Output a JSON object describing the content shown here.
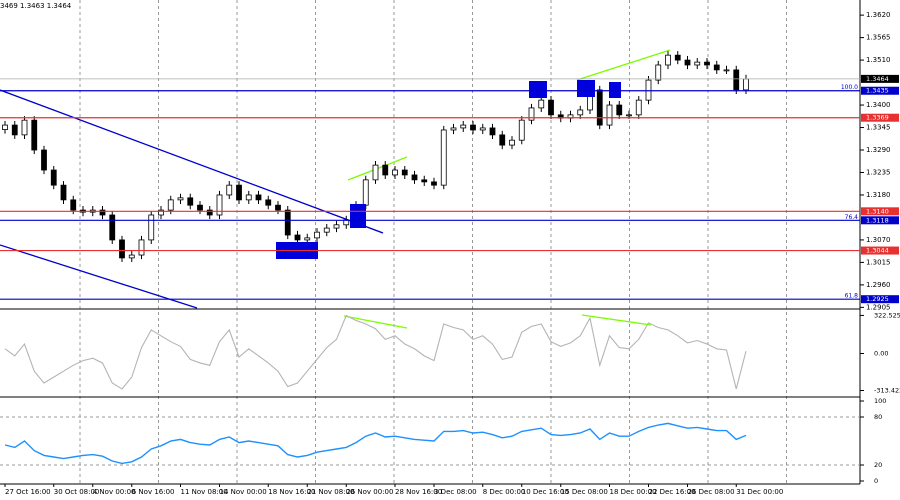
{
  "chart_data": {
    "type": "candlestick",
    "title": "3469 1.3463 1.3464",
    "categories": [
      "27 Oct 16:00",
      null,
      null,
      null,
      null,
      "30 Oct 08:00",
      null,
      null,
      null,
      "4 Nov 00:00",
      null,
      null,
      null,
      "6 Nov 16:00",
      null,
      null,
      null,
      null,
      "11 Nov 08:00",
      null,
      null,
      null,
      "14 Nov 00:00",
      null,
      null,
      null,
      null,
      "18 Nov 16:00",
      null,
      null,
      null,
      "21 Nov 08:00",
      null,
      null,
      null,
      "26 Nov 00:00",
      null,
      null,
      null,
      null,
      "28 Nov 16:00",
      null,
      null,
      null,
      "3 Dec 08:00",
      null,
      null,
      null,
      null,
      "8 Dec 00:00",
      null,
      null,
      null,
      "10 Dec 16:00",
      null,
      null,
      null,
      "15 Dec 08:00",
      null,
      null,
      null,
      null,
      "18 Dec 00:00",
      null,
      null,
      null,
      "22 Dec 16:00",
      null,
      null,
      null,
      "26 Dec 08:00",
      null,
      null,
      null,
      null,
      "31 Dec 00:00",
      null
    ],
    "open": [
      1.334,
      1.3351,
      1.3327,
      1.3363,
      1.329,
      1.3241,
      1.3204,
      1.3168,
      1.3143,
      1.3138,
      1.3143,
      1.3131,
      1.307,
      1.3026,
      1.3033,
      1.307,
      1.3131,
      1.3143,
      1.3168,
      1.3173,
      1.3155,
      1.3143,
      1.3131,
      1.318,
      1.3204,
      1.3168,
      1.318,
      1.3168,
      1.3155,
      1.3143,
      1.3082,
      1.307,
      1.3075,
      1.3089,
      1.3099,
      1.3107,
      1.3119,
      1.3155,
      1.3217,
      1.3253,
      1.3229,
      1.3241,
      1.3229,
      1.3217,
      1.3212,
      1.3204,
      1.3339,
      1.3344,
      1.3351,
      1.3339,
      1.3344,
      1.3327,
      1.3302,
      1.3314,
      1.3363,
      1.3393,
      1.3412,
      1.3376,
      1.3368,
      1.3376,
      1.3388,
      1.3437,
      1.3351,
      1.34,
      1.3376,
      1.3376,
      1.3412,
      1.3461,
      1.3498,
      1.3522,
      1.351,
      1.3498,
      1.3505,
      1.3498,
      1.3486,
      1.3486,
      1.3437
    ],
    "high": [
      1.3361,
      1.3361,
      1.3373,
      1.3373,
      1.33,
      1.3251,
      1.3214,
      1.3178,
      1.3153,
      1.3153,
      1.3153,
      1.3141,
      1.308,
      1.3043,
      1.308,
      1.3141,
      1.3153,
      1.3178,
      1.3183,
      1.3183,
      1.3165,
      1.3153,
      1.319,
      1.3214,
      1.3214,
      1.319,
      1.319,
      1.3178,
      1.3165,
      1.3153,
      1.3092,
      1.3085,
      1.3099,
      1.3109,
      1.3117,
      1.3129,
      1.3165,
      1.3227,
      1.3263,
      1.3263,
      1.3251,
      1.3251,
      1.3239,
      1.3227,
      1.3222,
      1.3349,
      1.3354,
      1.3361,
      1.3361,
      1.3354,
      1.3354,
      1.3337,
      1.3324,
      1.3373,
      1.3403,
      1.3422,
      1.3422,
      1.3386,
      1.3386,
      1.3398,
      1.3447,
      1.3447,
      1.341,
      1.341,
      1.3386,
      1.3422,
      1.3471,
      1.3508,
      1.3532,
      1.3532,
      1.352,
      1.3515,
      1.3515,
      1.3508,
      1.3496,
      1.3496,
      1.3474
    ],
    "low": [
      1.333,
      1.3317,
      1.3317,
      1.328,
      1.3231,
      1.3194,
      1.3158,
      1.3133,
      1.3128,
      1.3128,
      1.3121,
      1.306,
      1.3016,
      1.3016,
      1.3023,
      1.306,
      1.3121,
      1.3133,
      1.3158,
      1.3145,
      1.3133,
      1.3121,
      1.3121,
      1.317,
      1.3158,
      1.3158,
      1.3158,
      1.3145,
      1.3133,
      1.3072,
      1.306,
      1.306,
      1.3065,
      1.3079,
      1.3089,
      1.3097,
      1.3109,
      1.3145,
      1.3207,
      1.3219,
      1.3219,
      1.3219,
      1.3207,
      1.3202,
      1.3194,
      1.3194,
      1.3329,
      1.3334,
      1.3329,
      1.3329,
      1.3317,
      1.3292,
      1.3292,
      1.3304,
      1.3353,
      1.3383,
      1.3366,
      1.3358,
      1.3358,
      1.3366,
      1.3378,
      1.3341,
      1.3341,
      1.3366,
      1.3366,
      1.3366,
      1.3402,
      1.3451,
      1.3488,
      1.35,
      1.3488,
      1.3488,
      1.3488,
      1.3476,
      1.3476,
      1.3427,
      1.3427
    ],
    "close": [
      1.3351,
      1.3327,
      1.3363,
      1.329,
      1.3241,
      1.3204,
      1.3168,
      1.3143,
      1.3138,
      1.3143,
      1.3131,
      1.307,
      1.3026,
      1.3033,
      1.307,
      1.3131,
      1.3143,
      1.3168,
      1.3173,
      1.3155,
      1.3143,
      1.3131,
      1.318,
      1.3204,
      1.3168,
      1.318,
      1.3168,
      1.3155,
      1.3143,
      1.3082,
      1.307,
      1.3075,
      1.3089,
      1.3099,
      1.3107,
      1.3119,
      1.3155,
      1.3217,
      1.3253,
      1.3229,
      1.3241,
      1.3229,
      1.3217,
      1.3212,
      1.3204,
      1.3339,
      1.3344,
      1.3351,
      1.3339,
      1.3344,
      1.3327,
      1.3302,
      1.3314,
      1.3363,
      1.3393,
      1.3412,
      1.3376,
      1.3368,
      1.3376,
      1.3388,
      1.3437,
      1.3351,
      1.34,
      1.3376,
      1.3376,
      1.3412,
      1.3461,
      1.3498,
      1.3522,
      1.351,
      1.3498,
      1.3505,
      1.3498,
      1.3486,
      1.3486,
      1.3437,
      1.3464
    ],
    "ylim": [
      1.2901,
      1.3657
    ],
    "yticks": [
      {
        "value": 1.362,
        "label": "1.3620"
      },
      1.3565,
      {
        "value": 1.351,
        "label": "1.3510"
      },
      {
        "value": 1.34,
        "label": "1.3400"
      },
      1.3345,
      {
        "value": 1.329,
        "label": "1.3290"
      },
      1.3235,
      {
        "value": 1.318,
        "label": "1.3180"
      },
      {
        "value": 1.307,
        "label": "1.3070"
      },
      1.3015,
      {
        "value": 1.296,
        "label": "1.2960"
      },
      1.2905
    ],
    "levels": [
      {
        "value": 1.3435,
        "color": "#0000cc",
        "fib": "100.0"
      },
      {
        "value": 1.3369,
        "color": "#e83030"
      },
      {
        "value": 1.314,
        "label": "1.3140",
        "color": "#e83030"
      },
      {
        "value": 1.3118,
        "color": "#0000cc",
        "fib": "76.4"
      },
      {
        "value": 1.3044,
        "color": "#e83030"
      },
      {
        "value": 1.2925,
        "color": "#0000cc",
        "fib": "61.8"
      }
    ],
    "current_price": 1.3464,
    "cci": {
      "color": "#b4b4b4",
      "ylim": [
        -360,
        360
      ],
      "yticks": [
        322.5258,
        {
          "value": 0,
          "label": "0.00"
        },
        -313.422
      ],
      "values": [
        40,
        -20,
        80,
        -150,
        -250,
        -200,
        -150,
        -100,
        -60,
        -40,
        -80,
        -250,
        -300,
        -200,
        50,
        200,
        150,
        100,
        60,
        -50,
        -80,
        -100,
        100,
        200,
        -30,
        40,
        -20,
        -80,
        -150,
        -280,
        -250,
        -150,
        -50,
        50,
        120,
        322,
        280,
        250,
        210,
        120,
        150,
        80,
        40,
        -20,
        -60,
        250,
        220,
        200,
        120,
        150,
        80,
        -50,
        -30,
        180,
        230,
        250,
        100,
        60,
        90,
        150,
        300,
        -100,
        150,
        50,
        40,
        120,
        260,
        220,
        200,
        150,
        90,
        110,
        80,
        40,
        30,
        -300,
        20
      ]
    },
    "rsi": {
      "color": "#1e90ff",
      "ylim": [
        0,
        100
      ],
      "yticks": [
        100,
        80,
        20,
        0
      ],
      "grid": [
        80,
        20
      ],
      "values": [
        45,
        42,
        50,
        38,
        32,
        30,
        28,
        30,
        32,
        33,
        31,
        25,
        22,
        24,
        30,
        40,
        44,
        50,
        52,
        48,
        46,
        45,
        52,
        55,
        48,
        50,
        48,
        46,
        44,
        33,
        30,
        32,
        36,
        38,
        40,
        42,
        48,
        56,
        60,
        55,
        56,
        54,
        52,
        51,
        50,
        62,
        62,
        63,
        60,
        61,
        58,
        54,
        56,
        62,
        64,
        66,
        58,
        57,
        58,
        60,
        65,
        52,
        60,
        56,
        56,
        62,
        67,
        70,
        72,
        69,
        66,
        67,
        65,
        63,
        63,
        52,
        57
      ]
    }
  }
}
